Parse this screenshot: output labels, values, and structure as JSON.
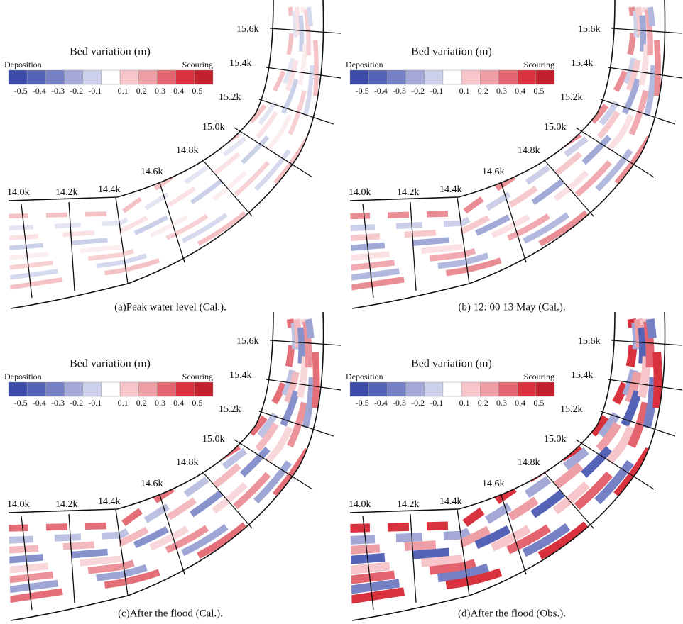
{
  "legend": {
    "title": "Bed variation (m)",
    "deposition": "Deposition",
    "scouring": "Scouring",
    "ticks": [
      "-0.5",
      "-0.4",
      "-0.3",
      "-0.2",
      "-0.1",
      "0.1",
      "0.2",
      "0.3",
      "0.4",
      "0.5"
    ],
    "colors": [
      "#3b4aa8",
      "#5563b6",
      "#7680c4",
      "#a3a8d6",
      "#cdd0ea",
      "#ffffff",
      "#f6c6ca",
      "#ee9ea5",
      "#e3646f",
      "#d9323f",
      "#c01f2c"
    ]
  },
  "stations": [
    "14.0k",
    "14.2k",
    "14.4k",
    "14.6k",
    "14.8k",
    "15.0k",
    "15.2k",
    "15.4k",
    "15.6k"
  ],
  "panels": [
    {
      "caption": "(a)Peak water level (Cal.)."
    },
    {
      "caption": "(b) 12: 00 13 May (Cal.)."
    },
    {
      "caption": "(c)After the flood (Cal.)."
    },
    {
      "caption": "(d)After the flood (Obs.)."
    }
  ]
}
